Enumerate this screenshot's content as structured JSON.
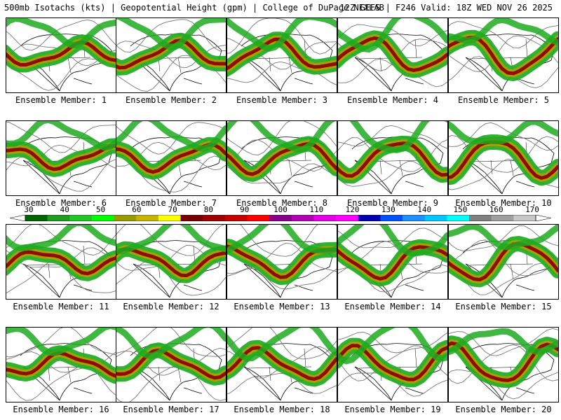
{
  "header": {
    "left": "500mb Isotachs (kts) | Geopotential Height (gpm) | College of DuPage NEXLAB",
    "right": "12Z GEFS | F246 Valid: 18Z WED NOV 26 2025"
  },
  "colorbar": {
    "tick_labels": [
      "30",
      "40",
      "50",
      "60",
      "70",
      "80",
      "90",
      "100",
      "110",
      "120",
      "130",
      "140",
      "150",
      "160",
      "170"
    ],
    "colors": [
      "#006400",
      "#1e9e1e",
      "#22c822",
      "#00ff00",
      "#9b9b00",
      "#c8b400",
      "#ffff00",
      "#780000",
      "#a00000",
      "#c80000",
      "#ff0000",
      "#8b008b",
      "#b400b4",
      "#e600e6",
      "#ff00ff",
      "#0000b4",
      "#0050ff",
      "#1e90ff",
      "#00c8ff",
      "#00ffff",
      "#808080",
      "#a0a0a0",
      "#c8c8c8"
    ]
  },
  "map_colors": {
    "land_outline": "#000000",
    "height_contour": "#777777",
    "isotach_low": "#1eaa1e",
    "isotach_mid": "#b4a000",
    "isotach_core": "#8b0000"
  },
  "members": [
    {
      "label": "Ensemble Member: 1"
    },
    {
      "label": "Ensemble Member: 2"
    },
    {
      "label": "Ensemble Member: 3"
    },
    {
      "label": "Ensemble Member: 4"
    },
    {
      "label": "Ensemble Member: 5"
    },
    {
      "label": "Ensemble Member: 6"
    },
    {
      "label": "Ensemble Member: 7"
    },
    {
      "label": "Ensemble Member: 8"
    },
    {
      "label": "Ensemble Member: 9"
    },
    {
      "label": "Ensemble Member: 10"
    },
    {
      "label": "Ensemble Member: 11"
    },
    {
      "label": "Ensemble Member: 12"
    },
    {
      "label": "Ensemble Member: 13"
    },
    {
      "label": "Ensemble Member: 14"
    },
    {
      "label": "Ensemble Member: 15"
    },
    {
      "label": "Ensemble Member: 16"
    },
    {
      "label": "Ensemble Member: 17"
    },
    {
      "label": "Ensemble Member: 18"
    },
    {
      "label": "Ensemble Member: 19"
    },
    {
      "label": "Ensemble Member: 20"
    }
  ]
}
